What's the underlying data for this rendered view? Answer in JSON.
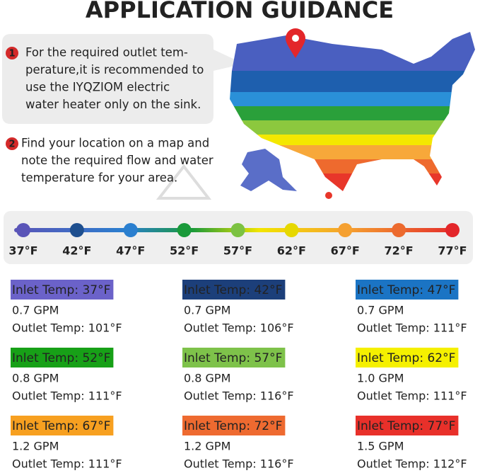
{
  "title": "APPLICATION GUIDANCE",
  "notes": [
    {
      "number": "1",
      "lines": [
        "For the required outlet tem-",
        "perature,it is recommended to",
        "use the IYQZIOM electric",
        "water heater only on the sink."
      ]
    },
    {
      "number": "2",
      "lines": [
        "Find your location on a map and",
        "note the required flow and water",
        "temperature for your area."
      ]
    }
  ],
  "scale": [
    {
      "label": "37°F",
      "color": "#5a55b8"
    },
    {
      "label": "42°F",
      "color": "#1e4f8f"
    },
    {
      "label": "47°F",
      "color": "#2a7fcf"
    },
    {
      "label": "52°F",
      "color": "#1a9a3a"
    },
    {
      "label": "57°F",
      "color": "#7cc242"
    },
    {
      "label": "62°F",
      "color": "#e6d800"
    },
    {
      "label": "67°F",
      "color": "#f5a030"
    },
    {
      "label": "72°F",
      "color": "#ec6a2e"
    },
    {
      "label": "77°F",
      "color": "#e3262a"
    }
  ],
  "cards": [
    {
      "inlet": "Inlet Temp: 37°F",
      "flow": "0.7 GPM",
      "outlet": "Outlet Temp: 101°F",
      "color": "#6b62c9"
    },
    {
      "inlet": "Inlet Temp: 42°F",
      "flow": "0.7 GPM",
      "outlet": "Outlet Temp: 106°F",
      "color": "#1c3f7a"
    },
    {
      "inlet": "Inlet Temp: 47°F",
      "flow": "0.7 GPM",
      "outlet": "Outlet Temp: 111°F",
      "color": "#1b74c4"
    },
    {
      "inlet": "Inlet Temp: 52°F",
      "flow": "0.8 GPM",
      "outlet": "Outlet Temp: 111°F",
      "color": "#17a017"
    },
    {
      "inlet": "Inlet Temp: 57°F",
      "flow": "0.8 GPM",
      "outlet": "Outlet Temp: 116°F",
      "color": "#7ec24a"
    },
    {
      "inlet": "Inlet Temp: 62°F",
      "flow": "1.0 GPM",
      "outlet": "Outlet Temp: 111°F",
      "color": "#f5f000"
    },
    {
      "inlet": "Inlet Temp: 67°F",
      "flow": "1.2 GPM",
      "outlet": "Outlet Temp: 111°F",
      "color": "#f7a020"
    },
    {
      "inlet": "Inlet Temp: 72°F",
      "flow": "1.2 GPM",
      "outlet": "Outlet Temp: 116°F",
      "color": "#ee6a30"
    },
    {
      "inlet": "Inlet Temp: 77°F",
      "flow": "1.5 GPM",
      "outlet": "Outlet Temp: 112°F",
      "color": "#e8302a"
    }
  ]
}
